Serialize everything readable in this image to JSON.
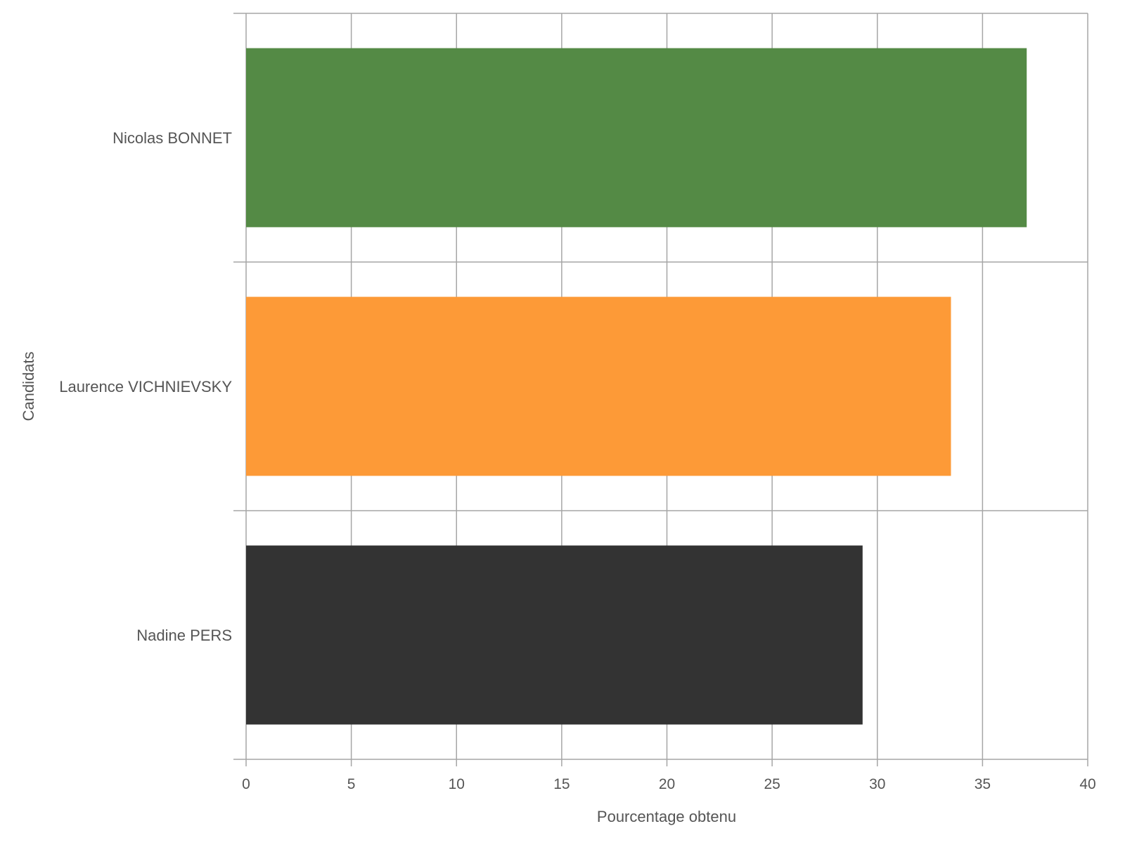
{
  "chart_data": {
    "type": "bar",
    "orientation": "horizontal",
    "categories": [
      "Nicolas BONNET",
      "Laurence VICHNIEVSKY",
      "Nadine PERS"
    ],
    "values": [
      37.1,
      33.5,
      29.3
    ],
    "colors": [
      "#548a45",
      "#fd9a37",
      "#333333"
    ],
    "xlabel": "Pourcentage obtenu",
    "ylabel": "Candidats",
    "xlim": [
      0,
      40
    ],
    "xticks": [
      "0",
      "5",
      "10",
      "15",
      "20",
      "25",
      "30",
      "35",
      "40"
    ],
    "grid": true,
    "legend": "none"
  }
}
